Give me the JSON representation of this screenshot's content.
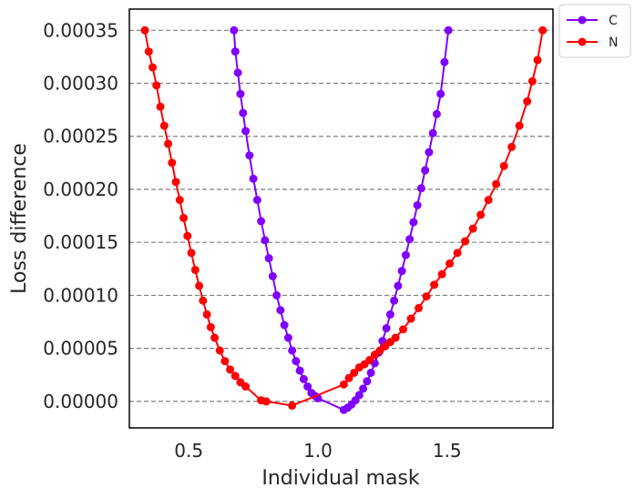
{
  "chart_data": {
    "type": "line",
    "title": "",
    "xlabel": "Individual mask",
    "ylabel": "Loss difference",
    "xlim": [
      0.27,
      1.91
    ],
    "ylim": [
      -2.5e-05,
      0.00037
    ],
    "xticks": [
      0.5,
      1.0,
      1.5
    ],
    "xtick_labels": [
      "0.5",
      "1.0",
      "1.5"
    ],
    "yticks": [
      0.0,
      5e-05,
      0.0001,
      0.00015,
      0.0002,
      0.00025,
      0.0003,
      0.00035
    ],
    "ytick_labels": [
      "0.00000",
      "0.00005",
      "0.00010",
      "0.00015",
      "0.00020",
      "0.00025",
      "0.00030",
      "0.00035"
    ],
    "grid": "horizontal dashed",
    "legend_position": "outside top-right",
    "series": [
      {
        "name": "C",
        "color": "#7f00ff",
        "marker": "circle",
        "x": [
          0.675,
          0.68,
          0.69,
          0.7,
          0.71,
          0.72,
          0.735,
          0.75,
          0.765,
          0.78,
          0.795,
          0.81,
          0.825,
          0.84,
          0.855,
          0.87,
          0.885,
          0.9,
          0.915,
          0.93,
          0.945,
          0.96,
          0.975,
          0.99,
          1.0,
          1.1,
          1.115,
          1.13,
          1.145,
          1.16,
          1.175,
          1.19,
          1.205,
          1.22,
          1.235,
          1.25,
          1.265,
          1.28,
          1.295,
          1.31,
          1.325,
          1.34,
          1.355,
          1.37,
          1.385,
          1.4,
          1.415,
          1.43,
          1.445,
          1.46,
          1.475,
          1.49,
          1.505
        ],
        "y": [
          0.00035,
          0.00033,
          0.00031,
          0.00029,
          0.000272,
          0.000255,
          0.000232,
          0.00021,
          0.00019,
          0.00017,
          0.000152,
          0.000135,
          0.000118,
          0.0001,
          8.6e-05,
          7.2e-05,
          6e-05,
          4.8e-05,
          3.8e-05,
          2.9e-05,
          2.1e-05,
          1.4e-05,
          8e-06,
          5e-06,
          3e-06,
          -8e-06,
          -6e-06,
          -3e-06,
          1e-06,
          6e-06,
          1.2e-05,
          1.9e-05,
          2.7e-05,
          3.6e-05,
          4.6e-05,
          5.7e-05,
          6.9e-05,
          8.2e-05,
          9.5e-05,
          0.000109,
          0.000123,
          0.000138,
          0.000153,
          0.000169,
          0.000185,
          0.000201,
          0.000218,
          0.000235,
          0.000253,
          0.000271,
          0.00029,
          0.00032,
          0.00035
        ]
      },
      {
        "name": "N",
        "color": "#ff0000",
        "marker": "circle",
        "x": [
          0.33,
          0.345,
          0.36,
          0.375,
          0.39,
          0.405,
          0.42,
          0.435,
          0.45,
          0.465,
          0.48,
          0.495,
          0.51,
          0.525,
          0.54,
          0.555,
          0.57,
          0.585,
          0.6,
          0.62,
          0.64,
          0.66,
          0.68,
          0.7,
          0.72,
          0.78,
          0.8,
          0.9,
          1.1,
          1.12,
          1.14,
          1.16,
          1.18,
          1.2,
          1.22,
          1.24,
          1.26,
          1.28,
          1.3,
          1.33,
          1.36,
          1.39,
          1.42,
          1.45,
          1.48,
          1.51,
          1.54,
          1.57,
          1.6,
          1.63,
          1.66,
          1.69,
          1.72,
          1.75,
          1.78,
          1.81,
          1.83,
          1.85,
          1.87
        ],
        "y": [
          0.00035,
          0.00033,
          0.000315,
          0.000298,
          0.000278,
          0.00026,
          0.000243,
          0.000225,
          0.000207,
          0.00019,
          0.000173,
          0.000156,
          0.00014,
          0.000124,
          0.000109,
          9.5e-05,
          8.2e-05,
          7e-05,
          6e-05,
          4.8e-05,
          3.8e-05,
          3e-05,
          2.4e-05,
          1.8e-05,
          1.4e-05,
          1e-06,
          0.0,
          -4e-06,
          1.6e-05,
          2.2e-05,
          2.7e-05,
          3.2e-05,
          3.5e-05,
          3.9e-05,
          4.4e-05,
          4.8e-05,
          5.2e-05,
          5.6e-05,
          6e-05,
          6.8e-05,
          7.8e-05,
          8.8e-05,
          9.9e-05,
          0.00011,
          0.00012,
          0.00013,
          0.00014,
          0.000151,
          0.000163,
          0.000176,
          0.00019,
          0.000205,
          0.000222,
          0.00024,
          0.00026,
          0.000283,
          0.000302,
          0.000322,
          0.00035
        ]
      }
    ]
  }
}
